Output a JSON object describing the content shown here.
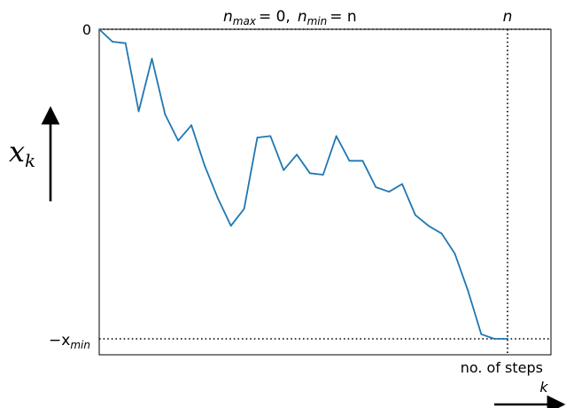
{
  "chart_data": {
    "type": "line",
    "title": "n_max = 0,  n_min = n",
    "title_parts": {
      "max_var": "n",
      "max_sub": "max",
      "max_rhs": "= 0,",
      "min_var": "n",
      "min_sub": "min",
      "min_rhs": "= n"
    },
    "ylabel": {
      "var": "x",
      "sub": "k"
    },
    "xlabel": {
      "line1": "no. of steps",
      "line2": "k"
    },
    "marker_n_label": "n",
    "ytick_top": "0",
    "ytick_bottom": {
      "prefix": "−x",
      "sub": "min"
    },
    "xlim": [
      0,
      31
    ],
    "ylim": [
      -1.05,
      0
    ],
    "n_step": 31,
    "min_value": -1.0,
    "grid": false,
    "colors": {
      "line": "#1f77b4",
      "axes": "#000000"
    },
    "series": [
      {
        "x": [
          0,
          1,
          2,
          3,
          4,
          5,
          6,
          7,
          8,
          9,
          10,
          11,
          12,
          13,
          14,
          15,
          16,
          17,
          18,
          19,
          20,
          21,
          22,
          23,
          24,
          25,
          26,
          27,
          28,
          29,
          30,
          31
        ],
        "values": [
          0.0,
          -0.04,
          -0.045,
          -0.265,
          -0.095,
          -0.275,
          -0.36,
          -0.31,
          -0.44,
          -0.545,
          -0.635,
          -0.58,
          -0.35,
          -0.345,
          -0.455,
          -0.405,
          -0.465,
          -0.47,
          -0.345,
          -0.425,
          -0.425,
          -0.51,
          -0.525,
          -0.5,
          -0.6,
          -0.635,
          -0.66,
          -0.725,
          -0.845,
          -0.985,
          -1.0,
          -1.0
        ]
      }
    ]
  }
}
